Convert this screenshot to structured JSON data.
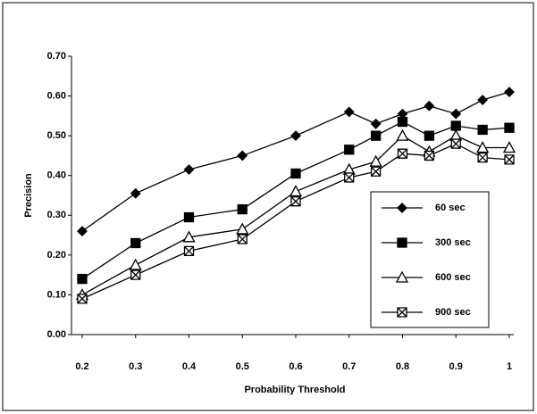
{
  "chart_data": {
    "type": "line",
    "x_label": "Probability Threshold",
    "y_label": "Precision",
    "x": [
      0.2,
      0.3,
      0.4,
      0.5,
      0.6,
      0.7,
      0.75,
      0.8,
      0.85,
      0.9,
      0.95,
      1.0
    ],
    "series": [
      {
        "name": "60 sec",
        "color": "#000000",
        "marker": "diamond",
        "values": [
          0.26,
          0.355,
          0.415,
          0.45,
          0.5,
          0.56,
          0.53,
          0.555,
          0.575,
          0.555,
          0.59,
          0.61
        ]
      },
      {
        "name": "300 sec",
        "color": "#000000",
        "marker": "square",
        "values": [
          0.14,
          0.23,
          0.295,
          0.315,
          0.405,
          0.465,
          0.5,
          0.535,
          0.5,
          0.525,
          0.515,
          0.52
        ]
      },
      {
        "name": "600 sec",
        "color": "#000000",
        "marker": "triangle",
        "values": [
          0.1,
          0.175,
          0.245,
          0.265,
          0.36,
          0.415,
          0.435,
          0.5,
          0.46,
          0.5,
          0.47,
          0.47
        ]
      },
      {
        "name": "900 sec",
        "color": "#000000",
        "marker": "x-square",
        "values": [
          0.09,
          0.15,
          0.21,
          0.24,
          0.335,
          0.395,
          0.41,
          0.455,
          0.45,
          0.48,
          0.445,
          0.44
        ]
      }
    ],
    "xlim": [
      0.2,
      1.0
    ],
    "ylim": [
      0,
      0.7
    ],
    "xticks": [
      0.2,
      0.3,
      0.4,
      0.5,
      0.6,
      0.7,
      0.8,
      0.9,
      1
    ],
    "yticks": [
      {
        "value": 0,
        "label": "0.00"
      },
      {
        "value": 0.1,
        "label": "0.10"
      },
      {
        "value": 0.2,
        "label": "0.20"
      },
      {
        "value": 0.3,
        "label": "0.30"
      },
      {
        "value": 0.4,
        "label": "0.40"
      },
      {
        "value": 0.5,
        "label": "0.50"
      },
      {
        "value": 0.6,
        "label": "0.60"
      },
      {
        "value": 0.7,
        "label": "0.70"
      }
    ],
    "grid": false,
    "legend": "lower right"
  }
}
